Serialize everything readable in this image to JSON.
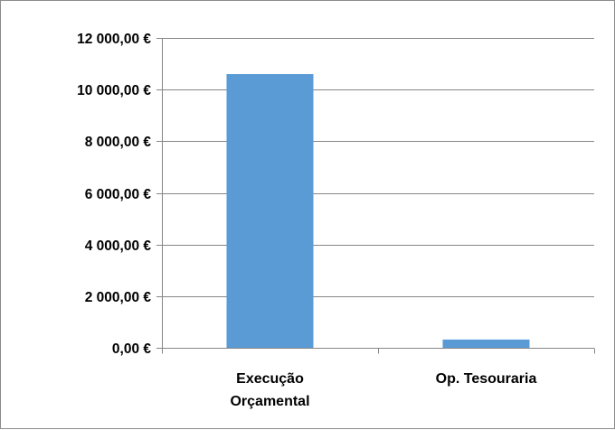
{
  "chart_data": {
    "type": "bar",
    "categories": [
      [
        "Execução",
        "Orçamental"
      ],
      [
        "Op. Tesouraria"
      ]
    ],
    "values": [
      10600,
      320
    ],
    "ylim": [
      0,
      12000
    ],
    "yticks": [
      0,
      2000,
      4000,
      6000,
      8000,
      10000,
      12000
    ],
    "ytick_labels": [
      "0,00 €",
      "2 000,00 €",
      "4 000,00 €",
      "6 000,00 €",
      "8 000,00 €",
      "10 000,00 €",
      "12 000,00 €"
    ],
    "bar_color": "#5b9bd5",
    "grid": true,
    "legend": "none"
  }
}
